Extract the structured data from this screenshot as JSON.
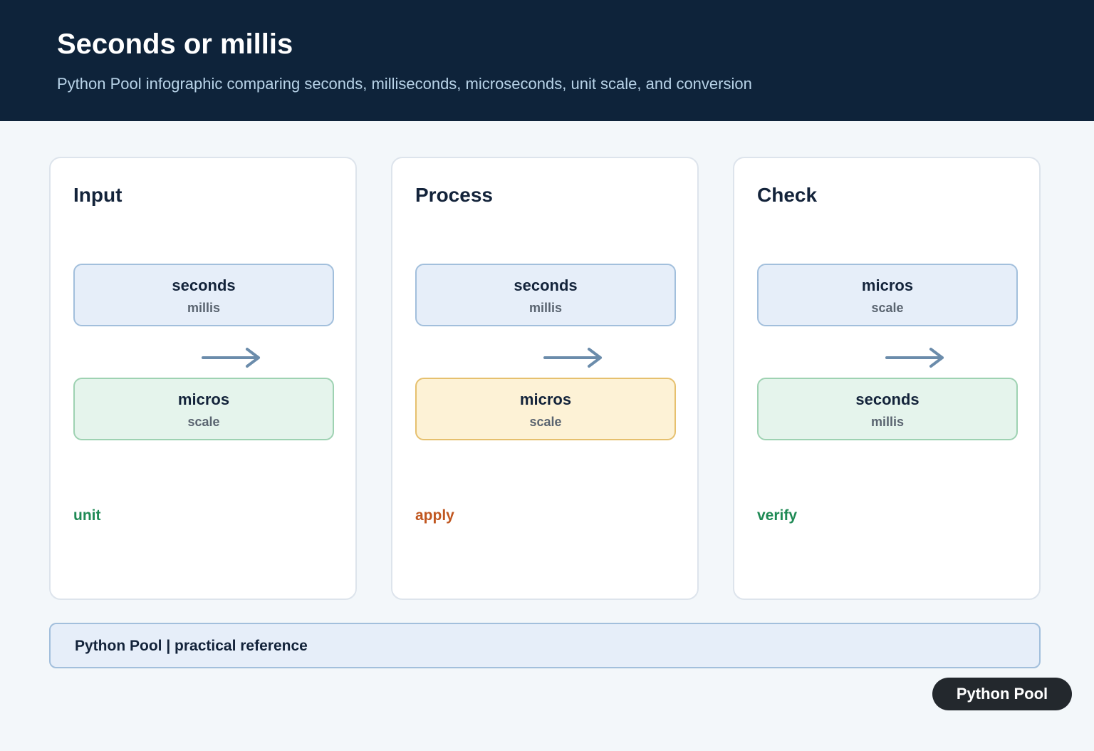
{
  "header": {
    "title": "Seconds or millis",
    "subtitle": "Python Pool infographic comparing seconds, milliseconds, microseconds, unit scale, and conversion"
  },
  "panels": [
    {
      "title": "Input",
      "top": {
        "label": "seconds",
        "sub": "millis"
      },
      "bottom": {
        "label": "micros",
        "sub": "scale"
      },
      "note": "unit"
    },
    {
      "title": "Process",
      "top": {
        "label": "seconds",
        "sub": "millis"
      },
      "bottom": {
        "label": "micros",
        "sub": "scale"
      },
      "note": "apply"
    },
    {
      "title": "Check",
      "top": {
        "label": "micros",
        "sub": "scale"
      },
      "bottom": {
        "label": "seconds",
        "sub": "millis"
      },
      "note": "verify"
    }
  ],
  "footer": "Python Pool | practical reference",
  "badge": "Python Pool"
}
